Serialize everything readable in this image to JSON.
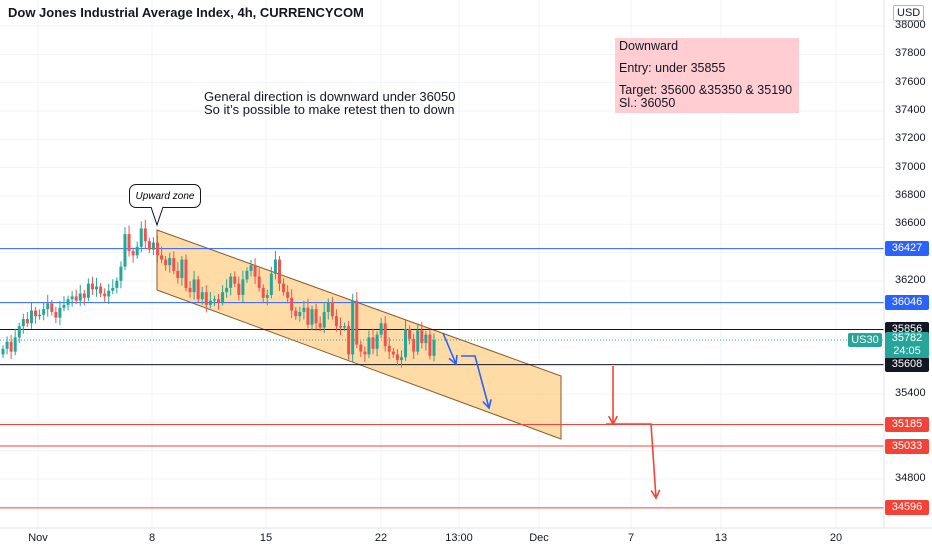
{
  "header": {
    "title": "Dow Jones Industrial Average Index, 4h, CURRENCYCOM",
    "currency": "USD"
  },
  "annotations": {
    "note_lines": [
      "General direction is downward under 36050",
      "So it’s possible to make retest then to down"
    ],
    "trade_box": {
      "title": "Downward",
      "entry": "Entry: under 35855",
      "target": "Target: 35600 &35350 & 35190",
      "stop": "Sl.: 36050"
    },
    "callout": "Upward zone",
    "ticker": "US30",
    "last_price": "35782",
    "countdown": "24:05"
  },
  "colors": {
    "up": "#26a69a",
    "down": "#ef5350",
    "blue_line": "#2962ff",
    "red_line": "#f44336",
    "black_line": "#131722",
    "channel_fill": "#ffcc80",
    "channel_edge": "#8b5a2b"
  },
  "chart_data": {
    "type": "candlestick",
    "title": "Dow Jones Industrial Average Index, 4h, CURRENCYCOM",
    "ylim": [
      34500,
      38050
    ],
    "y_ticks": [
      34800,
      35000,
      35200,
      35400,
      35600,
      35800,
      36000,
      36200,
      36400,
      36600,
      36800,
      37000,
      37200,
      37400,
      37600,
      37800,
      38000
    ],
    "y_tick_labels": [
      "34800",
      "35400",
      "36200",
      "36600",
      "36800",
      "37000",
      "37200",
      "37400",
      "37600",
      "37800",
      "38000"
    ],
    "x_labels": [
      "Nov",
      "8",
      "15",
      "22",
      "13:00",
      "Dec",
      "7",
      "13",
      "20"
    ],
    "price_lines": [
      {
        "value": 36427,
        "label": "36427",
        "color": "#2962ff"
      },
      {
        "value": 36046,
        "label": "36046",
        "color": "#2962ff"
      },
      {
        "value": 35856,
        "label": "35856",
        "color": "#131722"
      },
      {
        "value": 35608,
        "label": "35608",
        "color": "#131722"
      },
      {
        "value": 35185,
        "label": "35185",
        "color": "#f44336"
      },
      {
        "value": 35033,
        "label": "35033",
        "color": "#f44336"
      },
      {
        "value": 34596,
        "label": "34596",
        "color": "#f44336"
      }
    ],
    "last_price": 35782,
    "closes": [
      35720,
      35770,
      35700,
      35800,
      35880,
      35930,
      35900,
      35990,
      35950,
      35960,
      36000,
      36040,
      35980,
      35940,
      36010,
      36030,
      36070,
      36090,
      36060,
      36110,
      36080,
      36180,
      36140,
      36160,
      36110,
      36090,
      36130,
      36150,
      36200,
      36300,
      36530,
      36410,
      36380,
      36440,
      36570,
      36480,
      36420,
      36470,
      36380,
      36350,
      36310,
      36360,
      36270,
      36220,
      36350,
      36150,
      36120,
      36210,
      36070,
      36120,
      36030,
      36060,
      36070,
      36050,
      36120,
      36150,
      36230,
      36180,
      36100,
      36210,
      36270,
      36310,
      36230,
      36150,
      36080,
      36100,
      36250,
      36350,
      36180,
      36120,
      36080,
      35990,
      35950,
      35980,
      36010,
      35890,
      36000,
      35900,
      35870,
      35980,
      36050,
      35950,
      35880,
      35870,
      35880,
      35680,
      36060,
      35750,
      35700,
      35680,
      35800,
      35720,
      35820,
      35900,
      35740,
      35700,
      35680,
      35640,
      35660,
      35860,
      35790,
      35700,
      35850,
      35760,
      35820,
      35670,
      35780
    ]
  }
}
